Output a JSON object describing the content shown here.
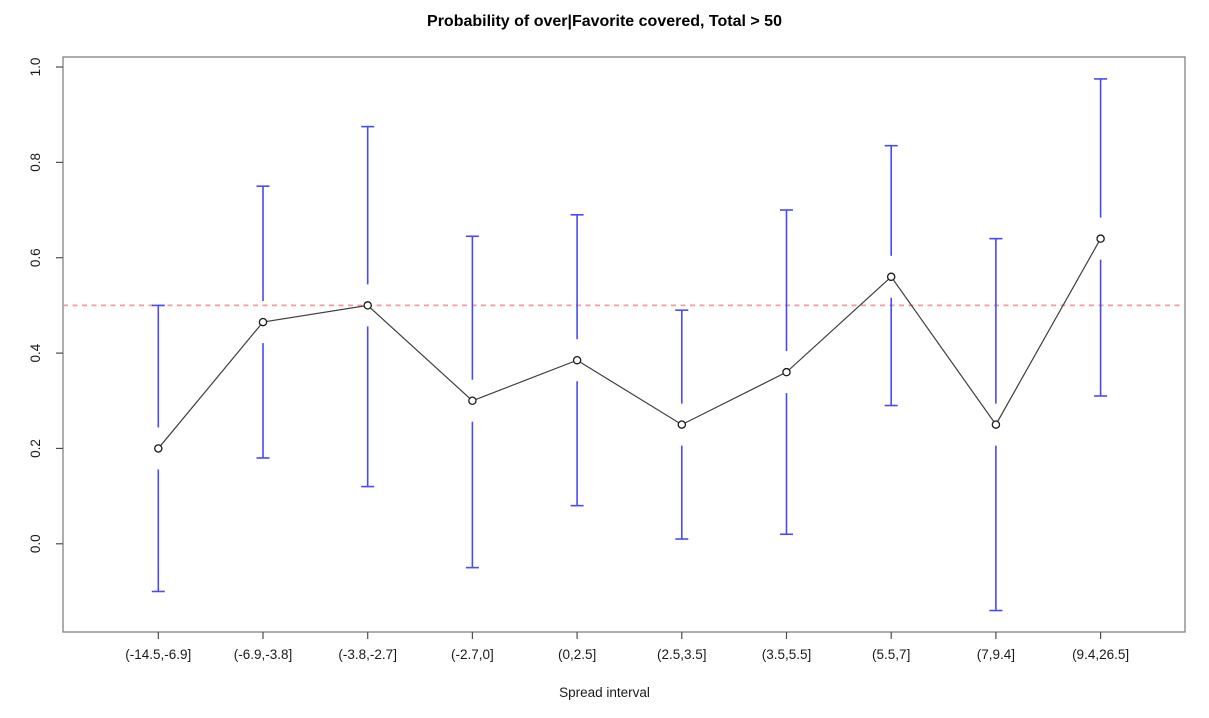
{
  "title": "Probability of over|Favorite covered, Total > 50",
  "chart_data": {
    "type": "line",
    "title": "Probability of over|Favorite covered, Total > 50",
    "xlabel": "Spread interval",
    "ylabel": "",
    "categories": [
      "(-14.5,-6.9]",
      "(-6.9,-3.8]",
      "(-3.8,-2.7]",
      "(-2.7,0]",
      "(0,2.5]",
      "(2.5,3.5]",
      "(3.5,5.5]",
      "(5.5,7]",
      "(7,9.4]",
      "(9.4,26.5]"
    ],
    "values": [
      0.2,
      0.465,
      0.5,
      0.3,
      0.385,
      0.25,
      0.36,
      0.56,
      0.25,
      0.64
    ],
    "error_bars": {
      "lower": [
        -0.1,
        0.18,
        0.12,
        -0.05,
        0.08,
        0.01,
        0.02,
        0.29,
        -0.14,
        0.31
      ],
      "upper": [
        0.5,
        0.75,
        0.875,
        0.645,
        0.69,
        0.49,
        0.7,
        0.835,
        0.64,
        0.975
      ]
    },
    "reference_line": {
      "y": 0.5,
      "style": "dashed"
    },
    "yticks": [
      "0.0",
      "0.2",
      "0.4",
      "0.6",
      "0.8",
      "1.0"
    ],
    "ytick_values": [
      0.0,
      0.2,
      0.4,
      0.6,
      0.8,
      1.0
    ],
    "ylim": [
      -0.185,
      1.021
    ],
    "grid": false,
    "legend": "none",
    "marker": "open-circle",
    "colors": {
      "error_bar": "#4a4af2",
      "series_line": "#3e3e3e",
      "marker_stroke": "#1a1a1a",
      "reference_line": "#f59b9b",
      "axis_box": "#777777",
      "tick": "#4d4d4d",
      "tick_label": "#1a1a1a"
    }
  }
}
